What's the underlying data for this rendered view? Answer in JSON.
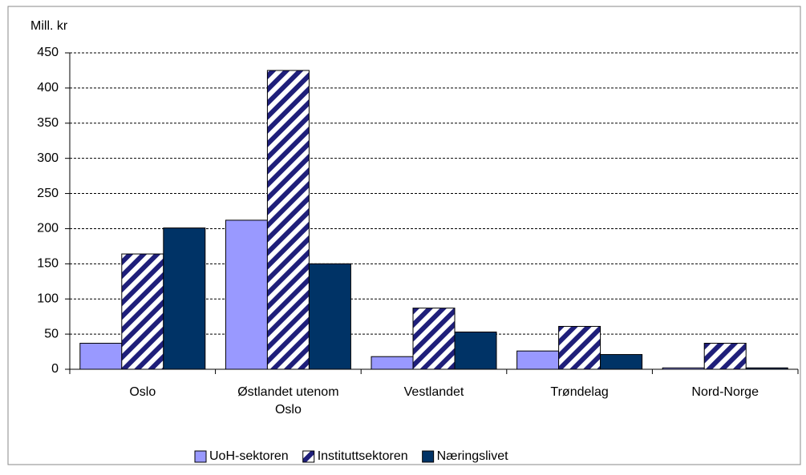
{
  "chart_data": {
    "type": "bar",
    "y_label": "Mill. kr",
    "categories": [
      "Oslo",
      "Østlandet utenom Oslo",
      "Vestlandet",
      "Trøndelag",
      "Nord-Norge"
    ],
    "series": [
      {
        "name": "UoH-sektoren",
        "color": "#9999ff",
        "values": [
          37,
          212,
          18,
          26,
          2
        ]
      },
      {
        "name": "Instituttsektoren",
        "color": "#1f1f7a",
        "pattern": "diagonal",
        "values": [
          164,
          425,
          87,
          61,
          37
        ]
      },
      {
        "name": "Næringslivet",
        "color": "#003366",
        "values": [
          201,
          150,
          53,
          21,
          2
        ]
      }
    ],
    "ylim": [
      0,
      450
    ],
    "yticks": [
      0,
      50,
      100,
      150,
      200,
      250,
      300,
      350,
      400,
      450
    ],
    "grid": true,
    "legend": "bottom"
  }
}
